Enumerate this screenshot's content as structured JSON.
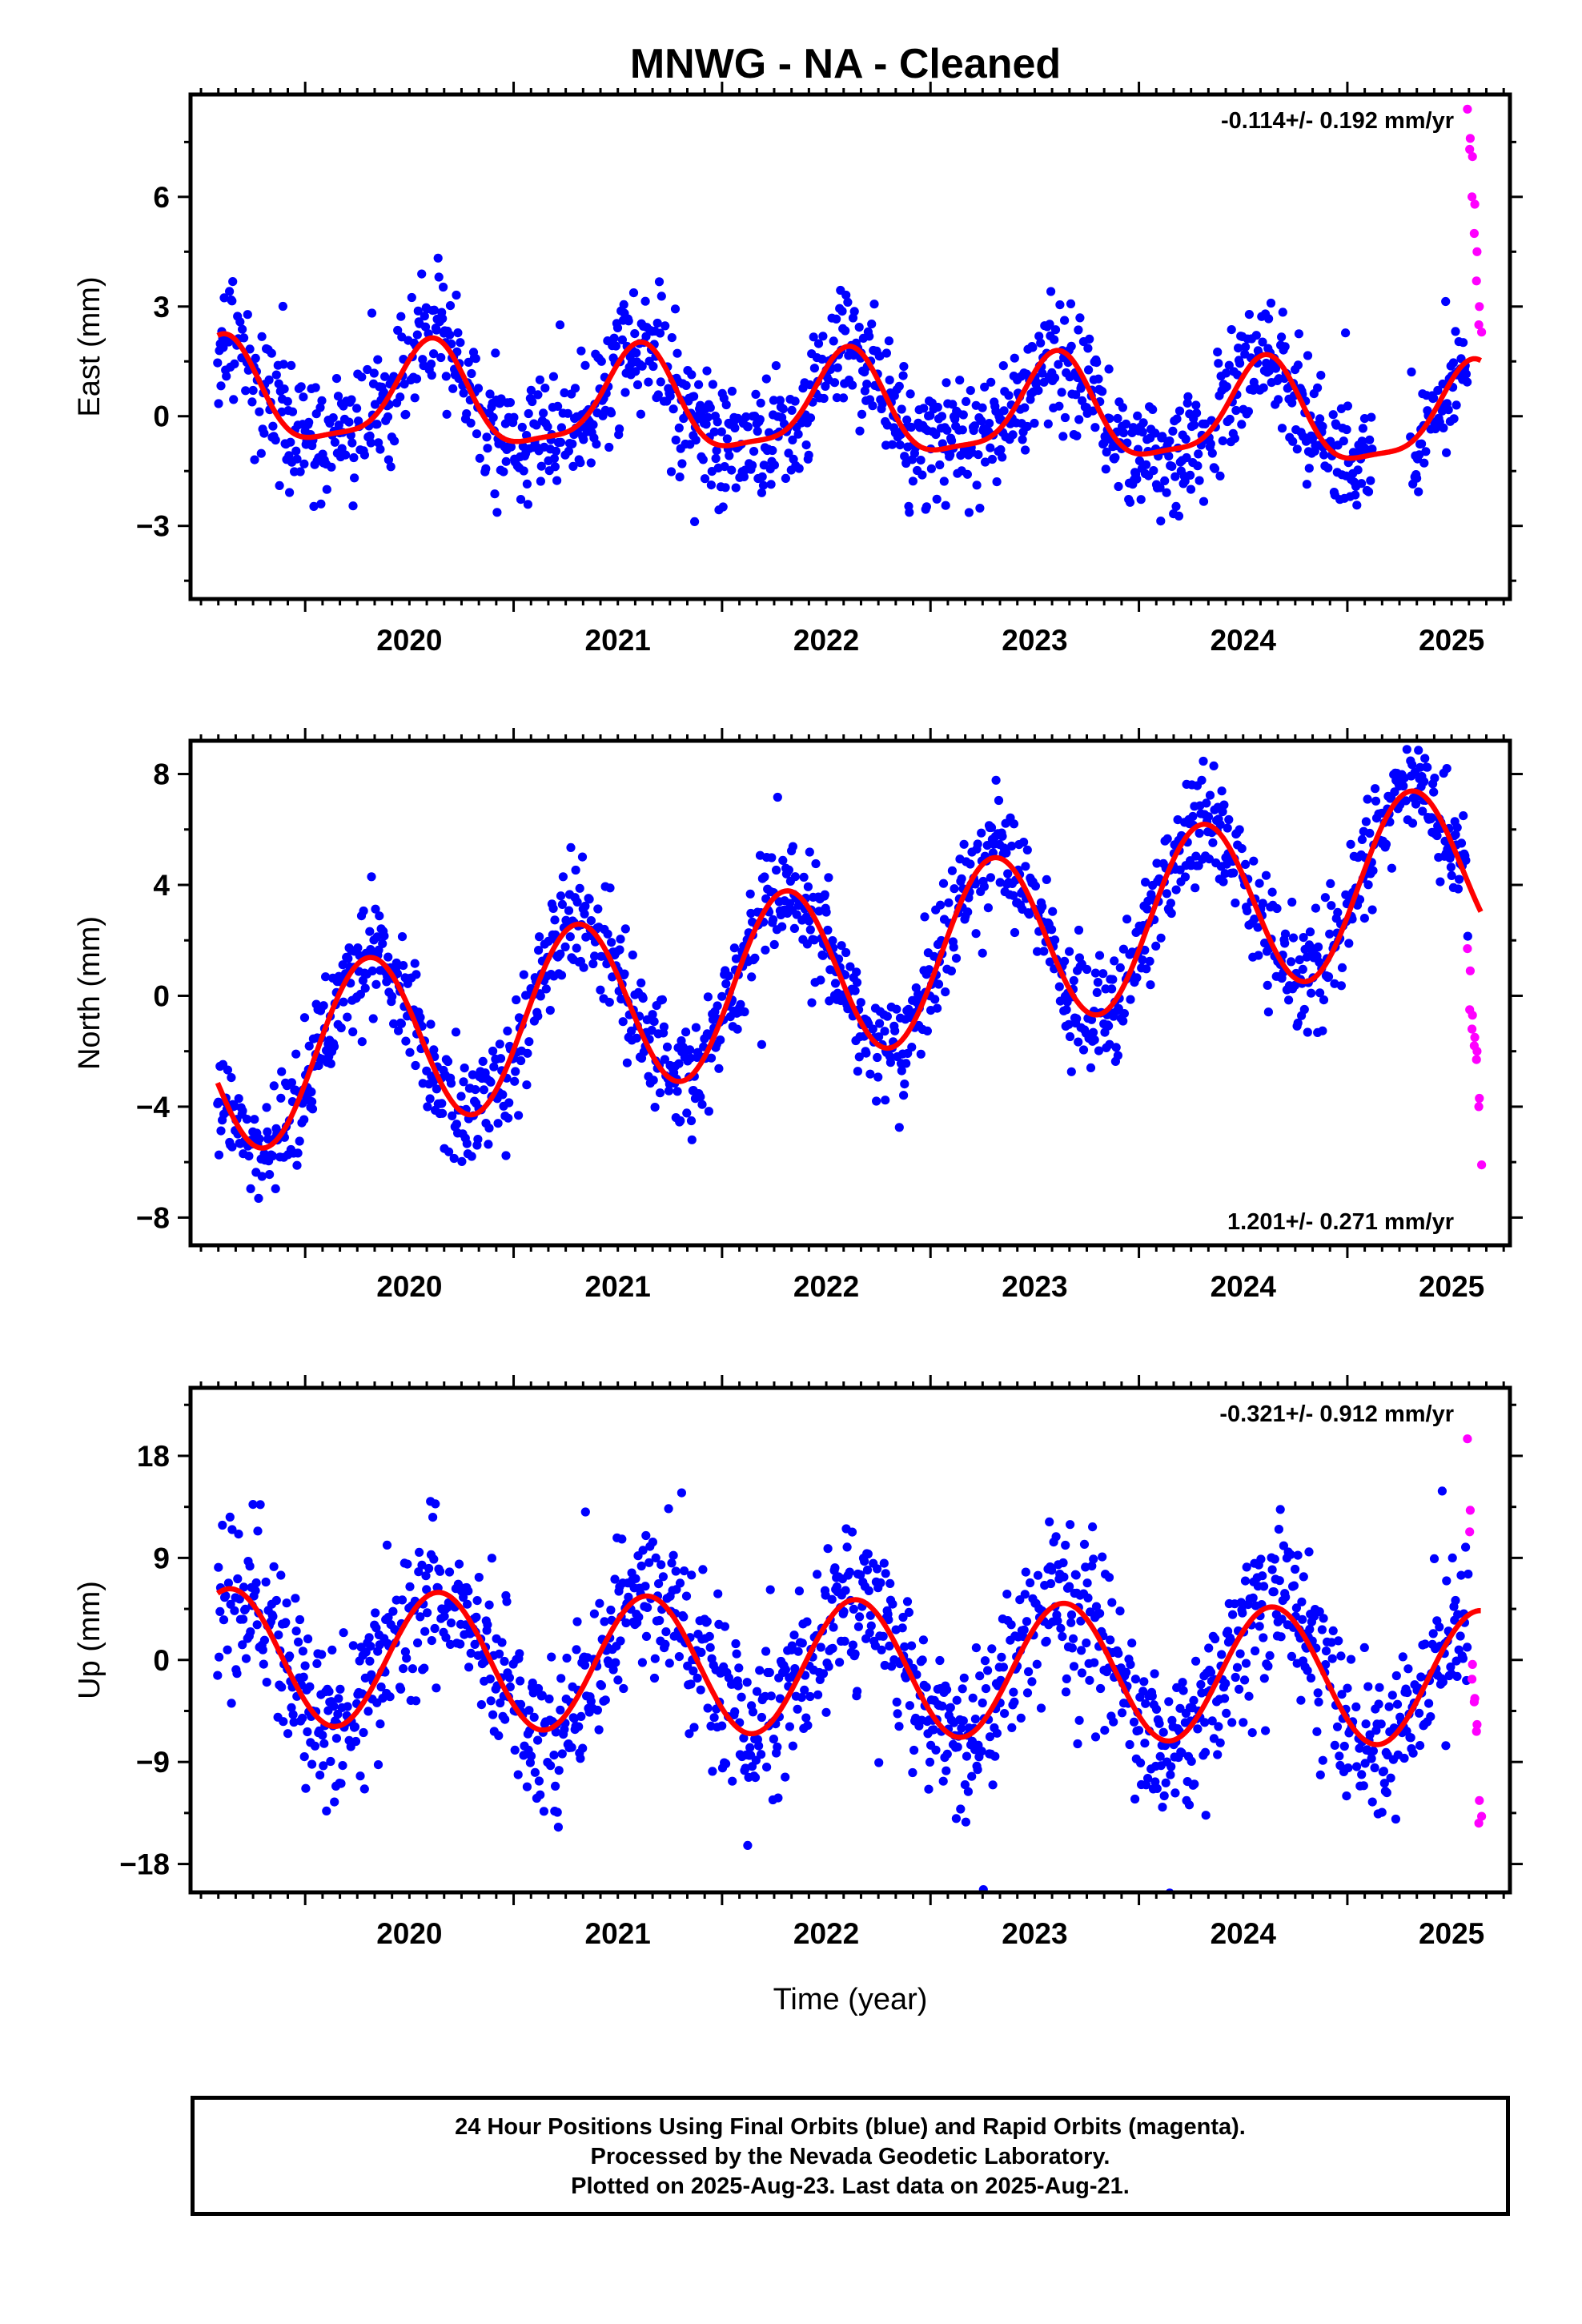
{
  "title": "MNWG  - NA - Cleaned",
  "footer": {
    "line1": "24 Hour Positions Using Final Orbits (blue) and Rapid Orbits (magenta).",
    "line2": "Processed by the Nevada Geodetic Laboratory.",
    "line3": "Plotted on 2025-Aug-23. Last data on 2025-Aug-21."
  },
  "colors": {
    "final": "#0000ff",
    "rapid": "#ff00ff",
    "model": "#ff0000"
  },
  "chart_data": [
    {
      "type": "scatter",
      "name": "east",
      "ylabel": "East (mm)",
      "xlabel": "",
      "rate_label": "-0.114+/- 0.192 mm/yr",
      "rate_position": "top-right",
      "xlim": [
        2019.45,
        2025.78
      ],
      "ylim": [
        -5.0,
        8.8
      ],
      "xticks": [
        2020,
        2021,
        2022,
        2023,
        2024,
        2025
      ],
      "yticks": [
        -3,
        0,
        3,
        6
      ],
      "ytick_labels": [
        "−3",
        "0",
        "3",
        "6"
      ],
      "trend": {
        "t0": 2019.6,
        "offset": 0.55,
        "rate": -0.114,
        "annual": [
          0.0,
          1.35
        ],
        "semiannual": [
          0.1,
          0.35
        ],
        "noise": 0.85,
        "seed": 11
      },
      "data_start": 2019.58,
      "data_end": 2025.64,
      "model_end": 2025.64,
      "rapid": {
        "x_start": 2025.58,
        "x_end": 2025.64,
        "y_values": [
          8.4,
          7.6,
          7.3,
          7.1,
          6.0,
          5.8,
          5.0,
          4.5,
          3.7,
          3.0,
          2.5,
          2.3
        ]
      }
    },
    {
      "type": "scatter",
      "name": "north",
      "ylabel": "North (mm)",
      "xlabel": "",
      "rate_label": "1.201+/- 0.271 mm/yr",
      "rate_position": "bottom-right",
      "xlim": [
        2019.45,
        2025.78
      ],
      "ylim": [
        -9.0,
        9.2
      ],
      "xticks": [
        2020,
        2021,
        2022,
        2023,
        2024,
        2025
      ],
      "yticks": [
        -8,
        -4,
        0,
        4,
        8
      ],
      "ytick_labels": [
        "−8",
        "−4",
        "0",
        "4",
        "8"
      ],
      "trend": {
        "t0": 2019.6,
        "offset": -2.6,
        "rate": 1.201,
        "annual": [
          -3.0,
          -0.9
        ],
        "semiannual": [
          0.0,
          0.0
        ],
        "noise": 1.0,
        "seed": 29
      },
      "data_start": 2019.58,
      "data_end": 2025.64,
      "model_end": 2025.64,
      "rapid": {
        "x_start": 2025.58,
        "x_end": 2025.64,
        "y_values": [
          1.7,
          0.9,
          -0.5,
          -0.7,
          -1.2,
          -1.5,
          -1.8,
          -2.0,
          -2.3,
          -3.7,
          -4.0,
          -6.1
        ]
      }
    },
    {
      "type": "scatter",
      "name": "up",
      "ylabel": "Up (mm)",
      "xlabel": "Time (year)",
      "rate_label": "-0.321+/- 0.912 mm/yr",
      "rate_position": "top-right",
      "xlim": [
        2019.45,
        2025.78
      ],
      "ylim": [
        -20.5,
        24.0
      ],
      "xticks": [
        2020,
        2021,
        2022,
        2023,
        2024,
        2025
      ],
      "yticks": [
        -18,
        -9,
        0,
        9,
        18
      ],
      "ytick_labels": [
        "−18",
        "−9",
        "0",
        "9",
        "18"
      ],
      "trend": {
        "t0": 2019.6,
        "offset": 0.3,
        "rate": -0.321,
        "annual": [
          1.5,
          5.8
        ],
        "semiannual": [
          0.0,
          0.0
        ],
        "noise": 3.4,
        "seed": 47
      },
      "data_start": 2019.58,
      "data_end": 2025.64,
      "model_end": 2025.64,
      "rapid": {
        "x_start": 2025.58,
        "x_end": 2025.64,
        "y_values": [
          19.5,
          13.2,
          11.3,
          -0.4,
          -1.7,
          -3.4,
          -3.7,
          -5.7,
          -6.3,
          -12.4,
          -14.4,
          -13.8
        ]
      }
    }
  ]
}
